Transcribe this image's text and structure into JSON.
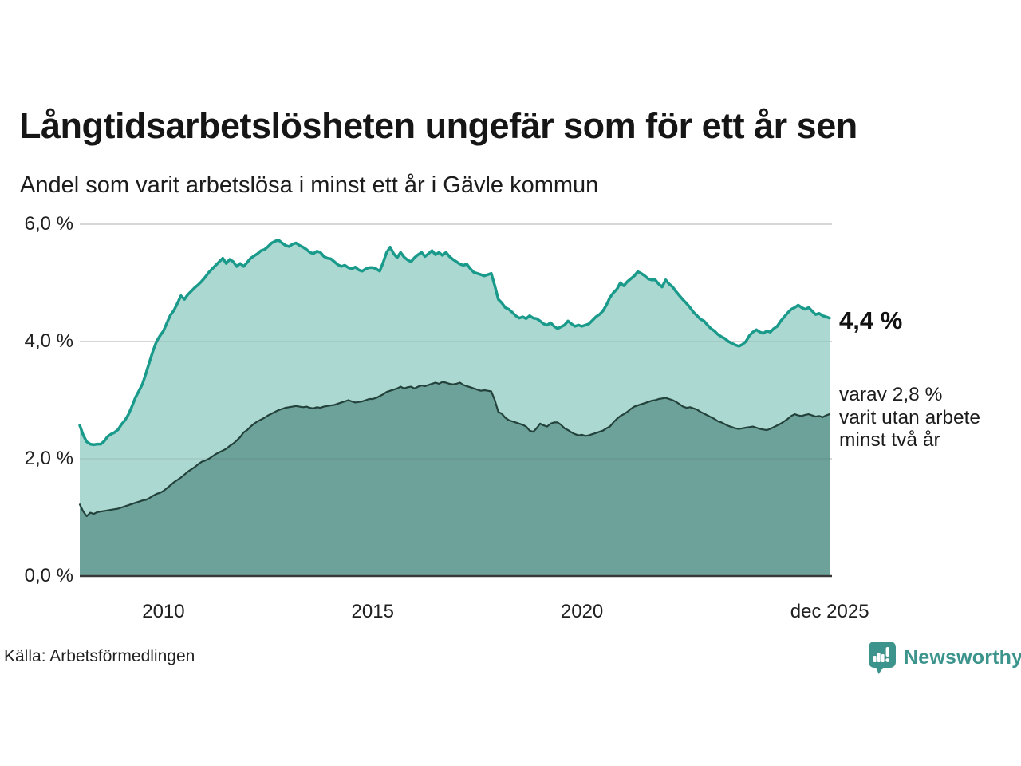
{
  "header": {
    "title": "Långtidsarbetslösheten ungefär som för ett år sen",
    "subtitle": "Andel som varit arbetslösa i minst ett år i Gävle kommun"
  },
  "footer": {
    "source": "Källa: Arbetsförmedlingen",
    "brand": "Newsworthy"
  },
  "colors": {
    "line_long": "#1a9a8b",
    "fill_long": "#abd8d0",
    "line_verylong": "#24423c",
    "fill_verylong": "#6da29a",
    "gridline": "#e3e3e3",
    "baseline": "#383838",
    "brand_teal": "#3c948c"
  },
  "chart_data": {
    "type": "area",
    "title": "Långtidsarbetslösheten ungefär som för ett år sen",
    "subtitle": "Andel som varit arbetslösa i minst ett år i Gävle kommun",
    "unit": "%",
    "x_start_year": 2008,
    "x_step_months": 1,
    "ylim": [
      0,
      6
    ],
    "grid": "horizontal",
    "legend": "none",
    "y_ticks": [
      {
        "value": 6,
        "label": "6,0 %"
      },
      {
        "value": 4,
        "label": "4,0 %"
      },
      {
        "value": 2,
        "label": "2,0 %"
      },
      {
        "value": 0,
        "label": "0,0 %"
      }
    ],
    "x_ticks": [
      {
        "year": 2010.0,
        "label": "2010"
      },
      {
        "year": 2015.0,
        "label": "2015"
      },
      {
        "year": 2020.0,
        "label": "2020"
      },
      {
        "year": 2025.92,
        "label": "dec 2025"
      }
    ],
    "end_labels": {
      "primary": "4,4 %",
      "annotation_lines": [
        "varav 2,8 %",
        "varit utan arbete",
        "minst två år"
      ]
    },
    "series": [
      {
        "name": "Arbetslösa minst ett år",
        "color": "#1a9a8b",
        "fill": "#abd8d0",
        "last_value": 4.4,
        "values": [
          2.57,
          2.4,
          2.29,
          2.25,
          2.24,
          2.25,
          2.25,
          2.3,
          2.38,
          2.42,
          2.45,
          2.5,
          2.59,
          2.66,
          2.76,
          2.9,
          3.05,
          3.16,
          3.28,
          3.46,
          3.65,
          3.84,
          4.0,
          4.1,
          4.18,
          4.32,
          4.45,
          4.53,
          4.65,
          4.78,
          4.72,
          4.8,
          4.86,
          4.92,
          4.97,
          5.03,
          5.1,
          5.18,
          5.24,
          5.3,
          5.36,
          5.42,
          5.33,
          5.4,
          5.36,
          5.28,
          5.33,
          5.28,
          5.35,
          5.42,
          5.46,
          5.5,
          5.55,
          5.57,
          5.62,
          5.68,
          5.71,
          5.73,
          5.68,
          5.64,
          5.62,
          5.66,
          5.68,
          5.64,
          5.61,
          5.57,
          5.52,
          5.5,
          5.54,
          5.52,
          5.45,
          5.42,
          5.41,
          5.36,
          5.31,
          5.28,
          5.3,
          5.26,
          5.24,
          5.27,
          5.22,
          5.2,
          5.24,
          5.26,
          5.26,
          5.24,
          5.2,
          5.35,
          5.52,
          5.61,
          5.5,
          5.43,
          5.52,
          5.44,
          5.39,
          5.36,
          5.43,
          5.48,
          5.52,
          5.45,
          5.5,
          5.55,
          5.48,
          5.52,
          5.47,
          5.52,
          5.45,
          5.4,
          5.36,
          5.32,
          5.3,
          5.32,
          5.24,
          5.18,
          5.16,
          5.14,
          5.12,
          5.14,
          5.16,
          4.95,
          4.72,
          4.66,
          4.58,
          4.55,
          4.5,
          4.44,
          4.4,
          4.42,
          4.39,
          4.44,
          4.4,
          4.39,
          4.35,
          4.3,
          4.28,
          4.32,
          4.26,
          4.22,
          4.25,
          4.28,
          4.35,
          4.3,
          4.26,
          4.28,
          4.26,
          4.28,
          4.3,
          4.36,
          4.42,
          4.46,
          4.52,
          4.62,
          4.75,
          4.83,
          4.89,
          5.0,
          4.95,
          5.02,
          5.07,
          5.12,
          5.19,
          5.16,
          5.12,
          5.07,
          5.05,
          5.05,
          4.98,
          4.93,
          5.05,
          4.98,
          4.93,
          4.85,
          4.78,
          4.71,
          4.65,
          4.58,
          4.5,
          4.44,
          4.38,
          4.35,
          4.28,
          4.22,
          4.18,
          4.12,
          4.08,
          4.05,
          4.0,
          3.97,
          3.94,
          3.92,
          3.95,
          4.0,
          4.1,
          4.16,
          4.2,
          4.16,
          4.14,
          4.18,
          4.16,
          4.22,
          4.26,
          4.35,
          4.42,
          4.49,
          4.55,
          4.58,
          4.62,
          4.58,
          4.55,
          4.58,
          4.52,
          4.46,
          4.48,
          4.44,
          4.42,
          4.4
        ]
      },
      {
        "name": "Utan arbete minst två år",
        "color": "#24423c",
        "fill": "#6da29a",
        "last_value": 2.8,
        "values": [
          1.22,
          1.1,
          1.02,
          1.08,
          1.06,
          1.09,
          1.1,
          1.11,
          1.12,
          1.13,
          1.14,
          1.15,
          1.17,
          1.19,
          1.21,
          1.23,
          1.25,
          1.27,
          1.29,
          1.3,
          1.33,
          1.37,
          1.4,
          1.42,
          1.45,
          1.5,
          1.55,
          1.6,
          1.64,
          1.68,
          1.73,
          1.78,
          1.82,
          1.86,
          1.91,
          1.95,
          1.97,
          2.0,
          2.04,
          2.08,
          2.11,
          2.14,
          2.17,
          2.22,
          2.26,
          2.31,
          2.37,
          2.45,
          2.49,
          2.55,
          2.6,
          2.64,
          2.67,
          2.7,
          2.74,
          2.77,
          2.8,
          2.83,
          2.85,
          2.87,
          2.88,
          2.89,
          2.9,
          2.89,
          2.88,
          2.89,
          2.87,
          2.86,
          2.88,
          2.87,
          2.89,
          2.9,
          2.91,
          2.92,
          2.94,
          2.96,
          2.98,
          3.0,
          2.98,
          2.96,
          2.97,
          2.98,
          3.0,
          3.02,
          3.02,
          3.04,
          3.07,
          3.1,
          3.14,
          3.16,
          3.18,
          3.2,
          3.23,
          3.2,
          3.22,
          3.23,
          3.2,
          3.23,
          3.25,
          3.24,
          3.26,
          3.28,
          3.3,
          3.28,
          3.31,
          3.3,
          3.28,
          3.27,
          3.28,
          3.3,
          3.26,
          3.24,
          3.22,
          3.2,
          3.18,
          3.16,
          3.17,
          3.16,
          3.15,
          3.0,
          2.8,
          2.77,
          2.7,
          2.66,
          2.64,
          2.62,
          2.6,
          2.58,
          2.55,
          2.48,
          2.46,
          2.52,
          2.6,
          2.57,
          2.55,
          2.6,
          2.62,
          2.62,
          2.58,
          2.52,
          2.49,
          2.45,
          2.42,
          2.4,
          2.41,
          2.39,
          2.4,
          2.42,
          2.44,
          2.46,
          2.48,
          2.52,
          2.55,
          2.62,
          2.68,
          2.73,
          2.76,
          2.8,
          2.85,
          2.89,
          2.91,
          2.93,
          2.95,
          2.97,
          2.99,
          3.0,
          3.02,
          3.03,
          3.04,
          3.02,
          3.0,
          2.97,
          2.93,
          2.89,
          2.87,
          2.88,
          2.86,
          2.84,
          2.8,
          2.77,
          2.74,
          2.71,
          2.68,
          2.64,
          2.62,
          2.59,
          2.56,
          2.54,
          2.52,
          2.51,
          2.52,
          2.53,
          2.54,
          2.55,
          2.53,
          2.51,
          2.5,
          2.49,
          2.51,
          2.54,
          2.57,
          2.6,
          2.64,
          2.68,
          2.73,
          2.76,
          2.74,
          2.73,
          2.75,
          2.76,
          2.74,
          2.72,
          2.73,
          2.71,
          2.74,
          2.76
        ]
      }
    ]
  }
}
